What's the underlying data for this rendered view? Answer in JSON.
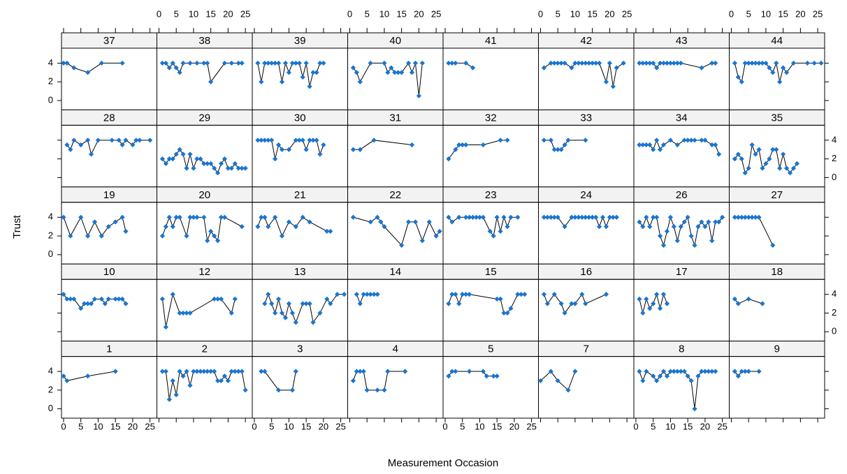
{
  "chart_data": {
    "type": "line",
    "xlabel": "Measurement Occasion",
    "ylabel": "Trust",
    "xlim": [
      -0.6,
      27
    ],
    "ylim": [
      -1,
      5.6
    ],
    "xticks": [
      0,
      5,
      10,
      15,
      20,
      25
    ],
    "yticks": [
      0,
      2,
      4
    ],
    "color": "#1a75cf",
    "line_color": "#000000",
    "columns": 8,
    "panels": [
      {
        "label": "37",
        "x": [
          0,
          1,
          3,
          7,
          11,
          17
        ],
        "values": [
          4,
          4,
          3.5,
          3,
          4,
          4
        ]
      },
      {
        "label": "38",
        "x": [
          1,
          2,
          3,
          4,
          5,
          6,
          7,
          9,
          11,
          13,
          14,
          15,
          19,
          21,
          23,
          24
        ],
        "values": [
          4,
          4,
          3.5,
          4,
          3.5,
          3,
          4,
          4,
          4,
          4,
          4,
          2,
          4,
          4,
          4,
          4
        ]
      },
      {
        "label": "39",
        "x": [
          1,
          2,
          3,
          4,
          5,
          6,
          7,
          8,
          9,
          10,
          11,
          12,
          13,
          14,
          15,
          16,
          17,
          18,
          19,
          20
        ],
        "values": [
          4,
          2,
          4,
          4,
          4,
          4,
          4,
          2,
          4,
          3,
          4,
          4,
          4,
          2.5,
          4,
          1.5,
          3,
          3,
          4,
          4
        ]
      },
      {
        "label": "40",
        "x": [
          1,
          2,
          3,
          6,
          10,
          11,
          12,
          13,
          14,
          15,
          17,
          18,
          19,
          20,
          21
        ],
        "values": [
          3.5,
          3,
          2,
          4,
          4,
          3,
          3.5,
          3,
          3,
          3,
          4,
          3,
          4,
          0.5,
          4
        ]
      },
      {
        "label": "41",
        "x": [
          1,
          2,
          3,
          6,
          8
        ],
        "values": [
          4,
          4,
          4,
          4,
          3.5
        ]
      },
      {
        "label": "42",
        "x": [
          1,
          3,
          4,
          5,
          6,
          7,
          9,
          10,
          11,
          12,
          13,
          14,
          15,
          16,
          17,
          19,
          20,
          21,
          22,
          24
        ],
        "values": [
          3.5,
          4,
          4,
          4,
          4,
          4,
          3.5,
          4,
          4,
          4,
          4,
          4,
          4,
          4,
          4,
          2,
          4,
          1.5,
          3.5,
          4
        ]
      },
      {
        "label": "43",
        "x": [
          1,
          2,
          3,
          4,
          5,
          6,
          7,
          8,
          9,
          10,
          11,
          12,
          13,
          19,
          22,
          23
        ],
        "values": [
          4,
          4,
          4,
          4,
          4,
          3.5,
          4,
          4,
          4,
          4,
          4,
          4,
          4,
          3.5,
          4,
          4
        ]
      },
      {
        "label": "44",
        "x": [
          1,
          2,
          3,
          4,
          5,
          6,
          7,
          8,
          9,
          10,
          11,
          12,
          13,
          14,
          15,
          16,
          18,
          22,
          24,
          26
        ],
        "values": [
          4,
          2.5,
          2,
          4,
          4,
          4,
          4,
          4,
          4,
          4,
          3.5,
          3,
          4,
          2,
          3.5,
          3,
          4,
          4,
          4,
          4
        ]
      },
      {
        "label": "28",
        "x": [
          1,
          2,
          3,
          5,
          7,
          8,
          10,
          14,
          16,
          17,
          18,
          20,
          21,
          22,
          25
        ],
        "values": [
          3.5,
          3,
          4,
          3.5,
          4,
          2.5,
          4,
          4,
          4,
          3.5,
          4,
          3.5,
          4,
          4,
          4
        ]
      },
      {
        "label": "29",
        "x": [
          1,
          2,
          3,
          4,
          5,
          6,
          7,
          8,
          9,
          10,
          11,
          12,
          13,
          14,
          15,
          16,
          17,
          18,
          19,
          20,
          21,
          22,
          23,
          24,
          25
        ],
        "values": [
          2,
          1.5,
          2,
          2,
          2.5,
          3,
          2.5,
          1,
          2.5,
          1,
          2,
          2,
          1.5,
          1.5,
          1.5,
          1,
          0.5,
          1.5,
          2,
          1,
          1,
          1.5,
          1,
          1,
          1
        ]
      },
      {
        "label": "30",
        "x": [
          1,
          2,
          3,
          4,
          5,
          6,
          7,
          8,
          10,
          12,
          13,
          14,
          15,
          16,
          17,
          18,
          19,
          20
        ],
        "values": [
          4,
          4,
          4,
          4,
          4,
          2,
          3.5,
          3,
          3,
          4,
          4,
          4,
          3,
          4,
          4,
          4,
          2.5,
          3.5
        ]
      },
      {
        "label": "31",
        "x": [
          1,
          3,
          7,
          18
        ],
        "values": [
          3,
          3,
          4,
          3.5
        ]
      },
      {
        "label": "32",
        "x": [
          1,
          3,
          4,
          5,
          6,
          11,
          16,
          18
        ],
        "values": [
          2,
          3,
          3.5,
          3.5,
          3.5,
          3.5,
          4,
          4
        ]
      },
      {
        "label": "33",
        "x": [
          1,
          3,
          4,
          5,
          6,
          7,
          8,
          13
        ],
        "values": [
          4,
          4,
          3,
          3,
          3,
          3.5,
          4,
          4
        ]
      },
      {
        "label": "34",
        "x": [
          1,
          2,
          3,
          4,
          5,
          6,
          7,
          8,
          10,
          12,
          14,
          15,
          16,
          17,
          19,
          20,
          22,
          23,
          24
        ],
        "values": [
          3.5,
          3.5,
          3.5,
          3.5,
          3,
          4,
          3,
          3.5,
          4,
          3.5,
          4,
          4,
          4,
          4,
          4,
          4,
          3.5,
          3.5,
          2.5
        ]
      },
      {
        "label": "35",
        "x": [
          1,
          2,
          3,
          4,
          5,
          6,
          7,
          8,
          9,
          10,
          11,
          12,
          13,
          14,
          15,
          16,
          17,
          18,
          19
        ],
        "values": [
          2,
          2.5,
          2,
          0.5,
          1,
          3.5,
          2.5,
          3,
          1,
          1.5,
          2,
          3,
          3,
          1,
          2.5,
          1,
          0.5,
          1,
          1.5
        ]
      },
      {
        "label": "19",
        "x": [
          0,
          2,
          5,
          7,
          9,
          11,
          13,
          15,
          17,
          18
        ],
        "values": [
          4,
          2,
          4,
          2,
          3.5,
          2,
          3,
          3.5,
          4,
          2.5
        ]
      },
      {
        "label": "20",
        "x": [
          1,
          2,
          3,
          4,
          5,
          6,
          8,
          9,
          10,
          11,
          13,
          14,
          15,
          16,
          17,
          18,
          19,
          24
        ],
        "values": [
          2,
          3,
          4,
          3,
          4,
          4,
          2,
          4,
          4,
          4,
          4,
          1.5,
          2.5,
          2,
          1.5,
          4,
          4,
          3
        ]
      },
      {
        "label": "21",
        "x": [
          1,
          2,
          3,
          4,
          6,
          8,
          10,
          12,
          14,
          16,
          21,
          22
        ],
        "values": [
          3,
          4,
          4,
          3,
          4,
          2,
          3.5,
          3,
          4,
          3.5,
          2.5,
          2.5
        ]
      },
      {
        "label": "22",
        "x": [
          1,
          6,
          8,
          9,
          10,
          15,
          17,
          19,
          21,
          23,
          25,
          26
        ],
        "values": [
          4,
          3.5,
          4,
          3.5,
          3,
          1,
          3.5,
          3.5,
          1.5,
          3.5,
          2,
          2.5
        ]
      },
      {
        "label": "23",
        "x": [
          1,
          2,
          4,
          6,
          7,
          8,
          9,
          10,
          11,
          13,
          14,
          15,
          16,
          17,
          18,
          19,
          21
        ],
        "values": [
          4,
          3.5,
          4,
          4,
          4,
          4,
          4,
          4,
          4,
          2.5,
          2,
          4,
          2.5,
          4,
          3,
          4,
          4
        ]
      },
      {
        "label": "24",
        "x": [
          1,
          2,
          3,
          4,
          5,
          7,
          9,
          10,
          11,
          12,
          13,
          14,
          15,
          16,
          17,
          18,
          19,
          20,
          21,
          22
        ],
        "values": [
          4,
          4,
          4,
          4,
          4,
          3,
          4,
          4,
          4,
          4,
          4,
          4,
          4,
          4,
          3,
          4,
          3,
          4,
          4,
          4
        ]
      },
      {
        "label": "26",
        "x": [
          1,
          2,
          3,
          4,
          5,
          6,
          7,
          8,
          9,
          10,
          11,
          12,
          13,
          14,
          15,
          16,
          17,
          18,
          19,
          20,
          21,
          22,
          23,
          24,
          25
        ],
        "values": [
          3.5,
          3,
          4,
          3,
          4,
          4,
          2,
          1,
          2.5,
          4,
          3,
          1.5,
          3,
          3.5,
          4,
          2,
          1,
          3,
          3.5,
          3,
          3.5,
          1.5,
          3.5,
          3.5,
          4
        ]
      },
      {
        "label": "27",
        "x": [
          1,
          2,
          3,
          4,
          5,
          6,
          7,
          8,
          12
        ],
        "values": [
          4,
          4,
          4,
          4,
          4,
          4,
          4,
          4,
          1
        ]
      },
      {
        "label": "10",
        "x": [
          0,
          1,
          2,
          3,
          5,
          6,
          7,
          8,
          9,
          11,
          12,
          13,
          15,
          16,
          17,
          18
        ],
        "values": [
          4,
          3.5,
          3.5,
          3.5,
          2.5,
          3,
          3,
          3,
          3.5,
          3.5,
          3,
          3.5,
          3.5,
          3.5,
          3.5,
          3
        ]
      },
      {
        "label": "12",
        "x": [
          1,
          2,
          4,
          6,
          7,
          8,
          9,
          16,
          17,
          18,
          21,
          22
        ],
        "values": [
          3.5,
          0.5,
          4,
          2,
          2,
          2,
          2,
          3.5,
          3.5,
          3.5,
          2,
          3.5
        ]
      },
      {
        "label": "13",
        "x": [
          3,
          4,
          5,
          6,
          7,
          8,
          9,
          10,
          11,
          12,
          14,
          15,
          16,
          17,
          19,
          21,
          22,
          24,
          26
        ],
        "values": [
          3,
          4,
          3,
          2,
          3.5,
          2,
          1.5,
          3,
          2,
          1,
          3,
          3,
          3,
          1,
          2,
          3.5,
          3,
          4,
          4
        ]
      },
      {
        "label": "14",
        "x": [
          2,
          3,
          4,
          5,
          6,
          7,
          8
        ],
        "values": [
          4,
          3,
          4,
          4,
          4,
          4,
          4
        ]
      },
      {
        "label": "15",
        "x": [
          1,
          2,
          3,
          4,
          5,
          6,
          7,
          15,
          16,
          17,
          18,
          19,
          21,
          22,
          23
        ],
        "values": [
          3,
          4,
          4,
          3,
          4,
          4,
          4,
          3.5,
          3.5,
          2,
          2,
          2.5,
          4,
          4,
          4
        ]
      },
      {
        "label": "16",
        "x": [
          1,
          2,
          4,
          6,
          7,
          9,
          10,
          12,
          13,
          19
        ],
        "values": [
          4,
          3,
          4,
          3,
          2,
          3,
          3,
          4,
          3,
          4
        ]
      },
      {
        "label": "17",
        "x": [
          1,
          2,
          3,
          4,
          5,
          6,
          7,
          8,
          9
        ],
        "values": [
          3.5,
          2,
          3.5,
          2.5,
          3,
          4,
          2.5,
          4,
          3
        ]
      },
      {
        "label": "18",
        "x": [
          1,
          2,
          5,
          9
        ],
        "values": [
          3.5,
          3,
          3.5,
          3
        ]
      },
      {
        "label": "1",
        "x": [
          0,
          1,
          7,
          15
        ],
        "values": [
          3.5,
          3,
          3.5,
          4
        ]
      },
      {
        "label": "2",
        "x": [
          1,
          2,
          3,
          4,
          5,
          6,
          7,
          8,
          9,
          10,
          11,
          12,
          13,
          14,
          15,
          16,
          17,
          18,
          19,
          20,
          21,
          22,
          23,
          24,
          25
        ],
        "values": [
          4,
          4,
          1,
          3,
          1.5,
          4,
          3.5,
          4,
          2.5,
          4,
          4,
          4,
          4,
          4,
          4,
          4,
          3,
          3,
          3.5,
          3,
          4,
          4,
          4,
          4,
          2
        ]
      },
      {
        "label": "3",
        "x": [
          2,
          3,
          7,
          11,
          12
        ],
        "values": [
          4,
          4,
          2,
          2,
          4
        ]
      },
      {
        "label": "4",
        "x": [
          1,
          2,
          3,
          4,
          5,
          8,
          10,
          11,
          16
        ],
        "values": [
          3,
          4,
          4,
          4,
          2,
          2,
          2,
          4,
          4
        ]
      },
      {
        "label": "5",
        "x": [
          1,
          2,
          3,
          7,
          11,
          12,
          14,
          15
        ],
        "values": [
          3.5,
          4,
          4,
          4,
          4,
          3.5,
          3.5,
          3.5
        ]
      },
      {
        "label": "7",
        "x": [
          0,
          3,
          5,
          8,
          10
        ],
        "values": [
          3,
          4,
          3,
          2,
          4
        ]
      },
      {
        "label": "8",
        "x": [
          1,
          2,
          3,
          5,
          6,
          7,
          8,
          9,
          10,
          11,
          12,
          13,
          14,
          15,
          16,
          17,
          18,
          19,
          20,
          21,
          22,
          23
        ],
        "values": [
          4,
          3,
          4,
          3.5,
          3,
          3.5,
          4,
          3.5,
          4,
          4,
          4,
          4,
          4,
          3.5,
          3,
          0,
          3.5,
          4,
          4,
          4,
          4,
          4
        ]
      },
      {
        "label": "9",
        "x": [
          1,
          2,
          3,
          4,
          5,
          8
        ],
        "values": [
          4,
          3.5,
          4,
          4,
          4,
          4
        ]
      }
    ]
  }
}
